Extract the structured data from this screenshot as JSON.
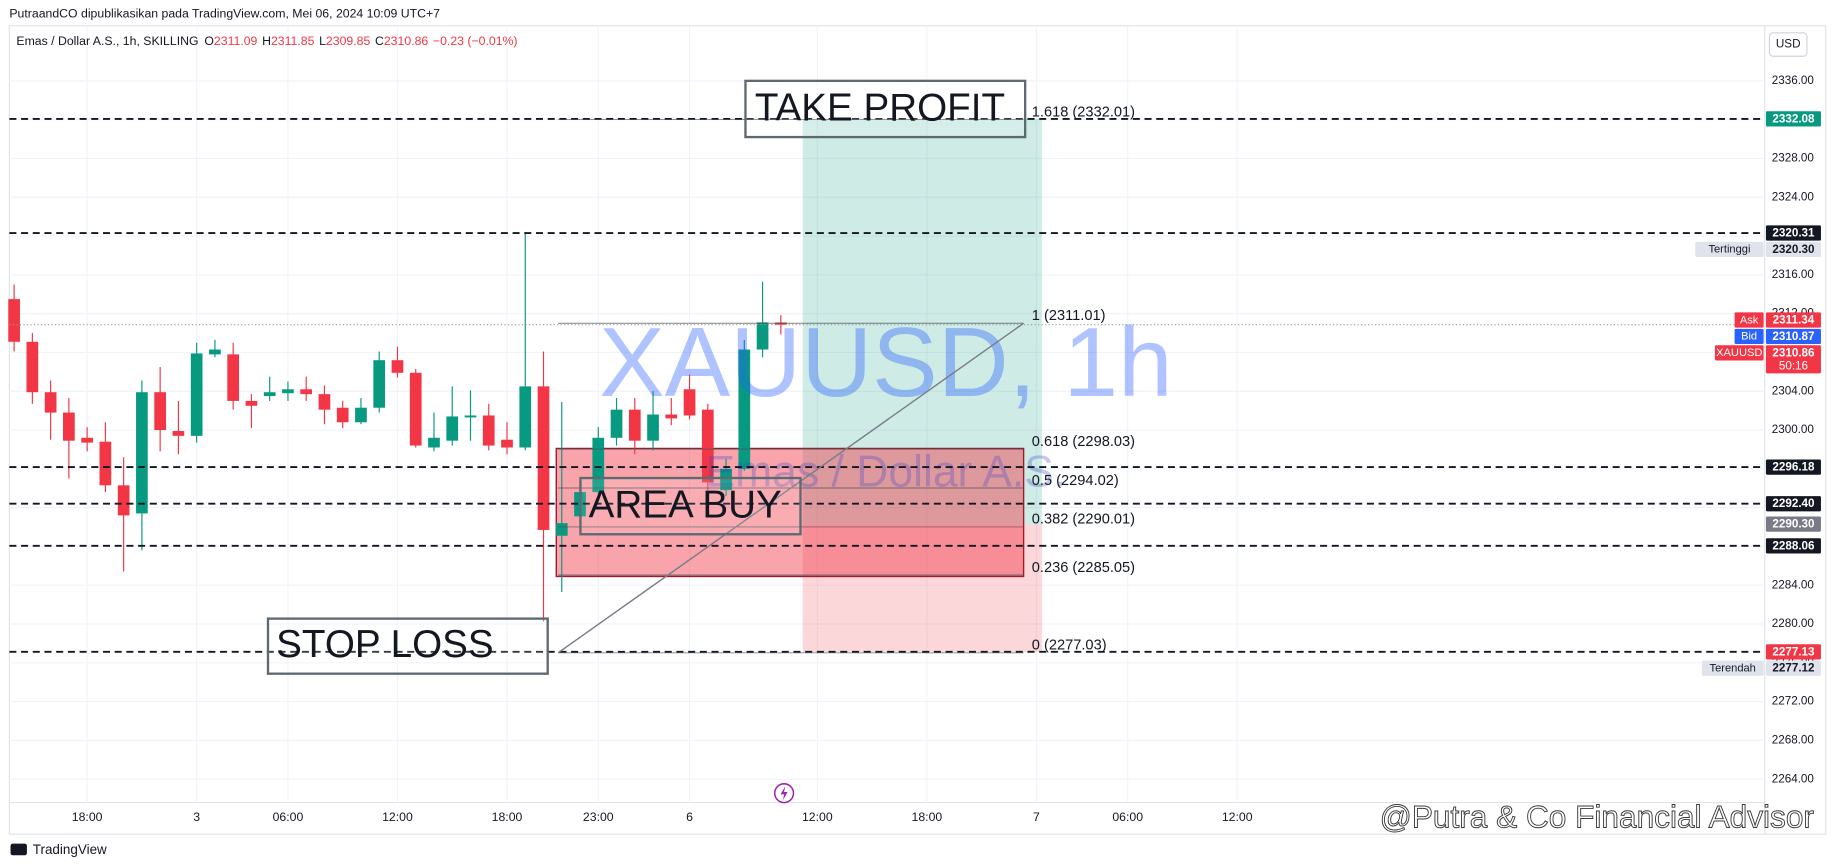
{
  "header": "PutraandCO dipublikasikan pada TradingView.com, Mei 06, 2024 10:09 UTC+7",
  "currency": "USD",
  "footer": {
    "brand": "TradingView",
    "watermark": "@Putra & Co Financial Advisor"
  },
  "annotations": {
    "take_profit": "TAKE PROFIT",
    "area_buy": "AREA BUY",
    "stop_loss": "STOP LOSS"
  },
  "chart_data": {
    "type": "candlestick",
    "watermark": {
      "title": "XAUUSD, 1h",
      "subtitle": "Emas / Dollar A.S."
    },
    "legend": {
      "symbol": "Emas / Dollar A.S., 1h, SKILLING",
      "items": [
        {
          "key": "O",
          "value": 2311.09
        },
        {
          "key": "H",
          "value": 2311.85
        },
        {
          "key": "L",
          "value": 2309.85
        },
        {
          "key": "C",
          "value": 2310.86
        }
      ],
      "change": "−0.23 (−0.01%)",
      "value_color": "#f23645"
    },
    "up_color": "#089981",
    "down_color": "#f23645",
    "categories": [
      null,
      null,
      null,
      null,
      null,
      null,
      null,
      null,
      null,
      null,
      null,
      null,
      null,
      null,
      null,
      null,
      null,
      null,
      null,
      null,
      null,
      null,
      null,
      null,
      null,
      null,
      null,
      null,
      null,
      null,
      null,
      null,
      null,
      null,
      null,
      null,
      null,
      null,
      null,
      null,
      null,
      null,
      null
    ],
    "open": [
      2313.5,
      2309.1,
      2303.9,
      2301.8,
      2299.2,
      2298.8,
      2294.3,
      2291.4,
      2303.9,
      2299.9,
      2299.4,
      2307.8,
      2307.8,
      2303.0,
      2303.5,
      2303.8,
      2304.2,
      2303.7,
      2302.3,
      2300.8,
      2302.3,
      2307.2,
      2305.9,
      2298.2,
      2298.9,
      2301.3,
      2301.5,
      2299.0,
      2298.2,
      2304.5,
      2289.1,
      2291.1,
      2293.6,
      2299.2,
      2302.1,
      2298.9,
      2301.6,
      2304.2,
      2302.1,
      2293.8,
      2296.0,
      2308.3,
      2311.09
    ],
    "high": [
      2315.0,
      2310.0,
      2305.1,
      2303.3,
      2300.3,
      2300.8,
      2297.2,
      2305.1,
      2306.5,
      2303.0,
      2309.0,
      2309.3,
      2309.0,
      2303.7,
      2305.5,
      2305.0,
      2305.5,
      2304.6,
      2303.0,
      2303.3,
      2308.1,
      2308.6,
      2306.3,
      2301.8,
      2304.5,
      2304.1,
      2302.7,
      2300.8,
      2320.4,
      2308.1,
      2302.9,
      2295.0,
      2300.3,
      2303.3,
      2303.3,
      2304.0,
      2303.3,
      2305.7,
      2302.7,
      2297.0,
      2309.3,
      2315.3,
      2311.85
    ],
    "low": [
      2308.1,
      2302.7,
      2299.0,
      2295.0,
      2297.8,
      2293.6,
      2285.4,
      2287.6,
      2297.8,
      2297.5,
      2298.7,
      2307.5,
      2302.1,
      2300.2,
      2303.0,
      2303.0,
      2303.0,
      2300.6,
      2300.2,
      2300.6,
      2301.8,
      2305.4,
      2298.2,
      2297.8,
      2298.4,
      2298.9,
      2297.9,
      2297.5,
      2297.9,
      2280.3,
      2283.3,
      2289.6,
      2293.4,
      2298.4,
      2297.5,
      2297.9,
      2300.5,
      2301.1,
      2293.8,
      2293.2,
      2295.8,
      2307.5,
      2309.85
    ],
    "close": [
      2309.1,
      2303.9,
      2301.8,
      2298.9,
      2298.7,
      2294.3,
      2291.2,
      2303.9,
      2300.0,
      2299.4,
      2307.9,
      2308.3,
      2303.0,
      2302.5,
      2303.9,
      2304.2,
      2303.7,
      2302.1,
      2300.8,
      2302.3,
      2307.2,
      2305.9,
      2298.4,
      2299.2,
      2301.4,
      2301.5,
      2298.4,
      2298.2,
      2304.5,
      2289.7,
      2290.4,
      2293.6,
      2299.2,
      2302.1,
      2298.9,
      2301.6,
      2301.2,
      2301.5,
      2294.6,
      2296.0,
      2308.3,
      2311.1,
      2310.86
    ],
    "xlim": [
      -0.26,
      95.9
    ],
    "xticks": [
      {
        "value": 4,
        "label": "18:00"
      },
      {
        "value": 10,
        "label": "3"
      },
      {
        "value": 15,
        "label": "06:00"
      },
      {
        "value": 21,
        "label": "12:00"
      },
      {
        "value": 27,
        "label": "18:00"
      },
      {
        "value": 32,
        "label": "23:00"
      },
      {
        "value": 37,
        "label": "6"
      },
      {
        "value": 44,
        "label": "12:00"
      },
      {
        "value": 50,
        "label": "18:00"
      },
      {
        "value": 56,
        "label": "7"
      },
      {
        "value": 61,
        "label": "06:00"
      },
      {
        "value": 67,
        "label": "12:00"
      }
    ],
    "ylim": [
      2261.59,
      2341.68
    ],
    "yticks": [
      {
        "value": 2264,
        "label": "2264.00"
      },
      {
        "value": 2268,
        "label": "2268.00"
      },
      {
        "value": 2272,
        "label": "2272.00"
      },
      {
        "value": 2276,
        "label": "2276.00"
      },
      {
        "value": 2280,
        "label": "2280.00"
      },
      {
        "value": 2284,
        "label": "2284.00"
      },
      {
        "value": 2288,
        "label": "2288.00"
      },
      {
        "value": 2292,
        "label": "2292.00"
      },
      {
        "value": 2296,
        "label": "2296.00"
      },
      {
        "value": 2300,
        "label": "2300.00"
      },
      {
        "value": 2304,
        "label": "2304.00"
      },
      {
        "value": 2308,
        "label": "2308.00"
      },
      {
        "value": 2312,
        "label": "2312.00"
      },
      {
        "value": 2316,
        "label": "2316.00"
      },
      {
        "value": 2320,
        "label": "2320.00"
      },
      {
        "value": 2324,
        "label": "2324.00"
      },
      {
        "value": 2328,
        "label": "2328.00"
      },
      {
        "value": 2332,
        "label": "2332.00"
      },
      {
        "value": 2336,
        "label": "2336.00"
      }
    ],
    "grid": true,
    "levels": [
      {
        "value": 2332.08,
        "label": "2332.08",
        "color": "#089981",
        "text_color": "#ffffff",
        "line": "dashed"
      },
      {
        "value": 2320.31,
        "label": "2320.31",
        "color": "#131722",
        "text_color": "#ffffff",
        "line": "dashed"
      },
      {
        "value": 2320.3,
        "label": "2320.30",
        "tag": "Tertinggi",
        "color": "#e0e3eb",
        "text_color": "#131722"
      },
      {
        "value": 2311.34,
        "label": "2311.34",
        "tag": "Ask",
        "color": "#f23645",
        "text_color": "#ffffff"
      },
      {
        "value": 2310.87,
        "label": "2310.87",
        "tag": "Bid",
        "color": "#2962ff",
        "text_color": "#ffffff"
      },
      {
        "value": 2310.86,
        "label": "2310.86",
        "tag": "XAUUSD",
        "sub": "50:16",
        "color": "#f23645",
        "text_color": "#ffffff",
        "line": "dotted"
      },
      {
        "value": 2296.18,
        "label": "2296.18",
        "color": "#131722",
        "text_color": "#ffffff",
        "line": "dashed"
      },
      {
        "value": 2292.4,
        "label": "2292.40",
        "color": "#131722",
        "text_color": "#ffffff",
        "line": "dashed"
      },
      {
        "value": 2290.3,
        "label": "2290.30",
        "color": "#787b86",
        "text_color": "#ffffff"
      },
      {
        "value": 2288.06,
        "label": "2288.06",
        "color": "#131722",
        "text_color": "#ffffff",
        "line": "dashed"
      },
      {
        "value": 2277.13,
        "label": "2277.13",
        "color": "#f23645",
        "text_color": "#ffffff",
        "line": "dashed"
      },
      {
        "value": 2277.12,
        "label": "2277.12",
        "tag": "Terendah",
        "color": "#e0e3eb",
        "text_color": "#131722"
      }
    ],
    "fib": {
      "x": [
        29.8,
        55.3
      ],
      "levels": [
        {
          "value": 2332.01,
          "label": "1.618 (2332.01)"
        },
        {
          "value": 2311.01,
          "label": "1 (2311.01)"
        },
        {
          "value": 2298.03,
          "label": "0.618 (2298.03)"
        },
        {
          "value": 2294.02,
          "label": "0.5 (2294.02)"
        },
        {
          "value": 2290.01,
          "label": "0.382 (2290.01)"
        },
        {
          "value": 2285.05,
          "label": "0.236 (2285.05)"
        },
        {
          "value": 2277.03,
          "label": "0 (2277.03)"
        }
      ]
    },
    "zone": {
      "x": [
        29.7,
        55.3
      ],
      "range": [
        2298.1,
        2284.9
      ],
      "color": "#f23645"
    },
    "position": {
      "x": [
        43.2,
        56.3
      ],
      "entry": 2290.3,
      "target": 2332.08,
      "stop": 2277.13,
      "profit_color": "#089981",
      "loss_color": "#f23645"
    }
  }
}
